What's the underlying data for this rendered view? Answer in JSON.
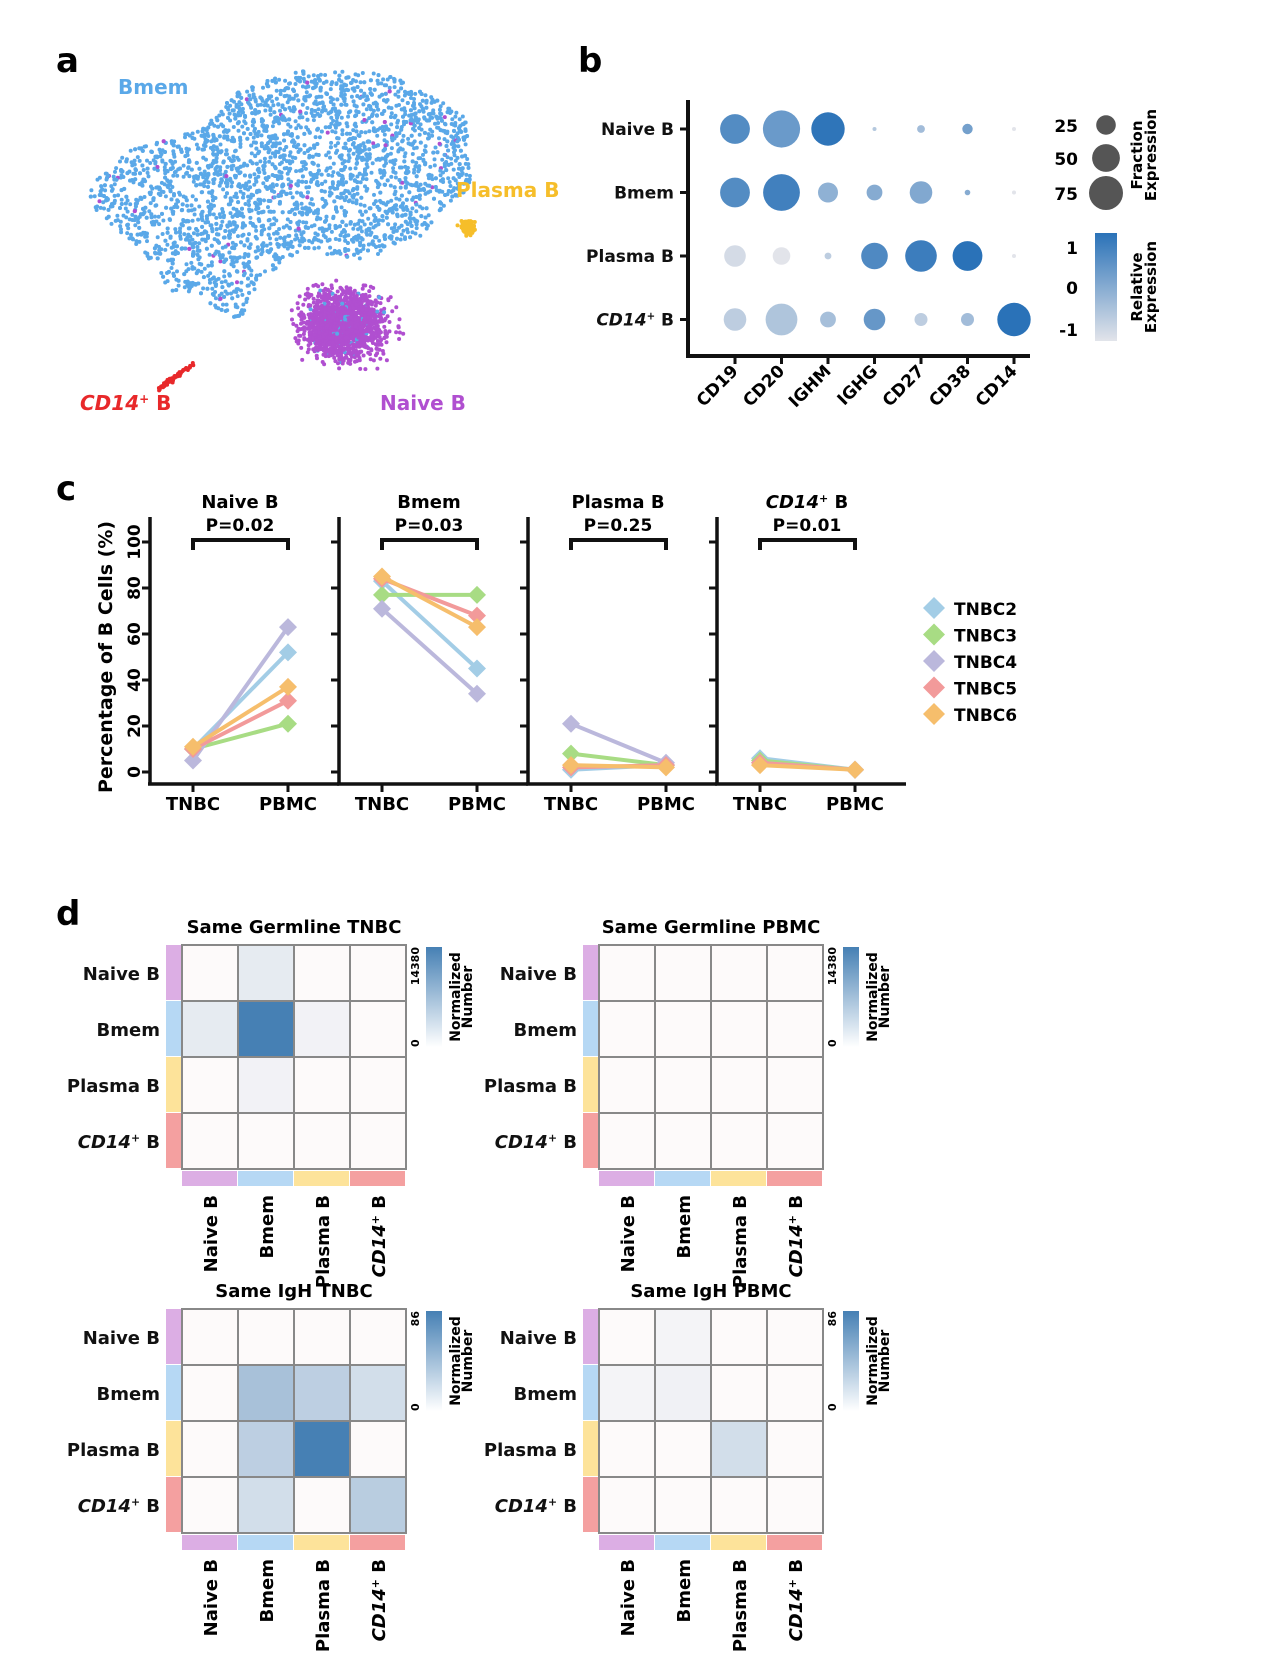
{
  "panel_labels": {
    "a": "a",
    "b": "b",
    "c": "c",
    "d": "d"
  },
  "colors": {
    "naive": "#b04fd0",
    "bmem": "#5aa8e8",
    "plasma": "#f6be2a",
    "cd14": "#e8282a",
    "dot_high": "#2a72b8",
    "dot_low": "#e2e4ea",
    "heat_high": "#4680b4",
    "heat_low": "#fdfafa",
    "ann_naive": "#dcaee4",
    "ann_bmem": "#b6d8f4",
    "ann_plasma": "#fde39a",
    "ann_cd14": "#f4a0a0"
  },
  "chart_data": [
    {
      "id": "a",
      "type": "scatter",
      "title": "",
      "cluster_labels": [
        {
          "key": "bmem",
          "text": "Bmem",
          "italic_prefix": "",
          "suffix": ""
        },
        {
          "key": "plasma",
          "text": "Plasma B",
          "italic_prefix": "",
          "suffix": ""
        },
        {
          "key": "naive",
          "text": "Naive B",
          "italic_prefix": "",
          "suffix": ""
        },
        {
          "key": "cd14",
          "text": " B",
          "italic_prefix": "CD14",
          "suffix": "+"
        }
      ],
      "clusters": [
        {
          "name": "Bmem",
          "key": "bmem",
          "approx_points": 3800
        },
        {
          "name": "Naive B",
          "key": "naive",
          "approx_points": 1800
        },
        {
          "name": "Plasma B",
          "key": "plasma",
          "approx_points": 90
        },
        {
          "name": "CD14+ B",
          "key": "cd14",
          "approx_points": 60
        }
      ]
    },
    {
      "id": "b",
      "type": "scatter",
      "subtype": "dotplot",
      "rows": [
        {
          "label": "Naive B",
          "italic_prefix": "",
          "suffix": ""
        },
        {
          "label": "Bmem",
          "italic_prefix": "",
          "suffix": ""
        },
        {
          "label": "Plasma B",
          "italic_prefix": "",
          "suffix": ""
        },
        {
          "label": " B",
          "italic_prefix": "CD14",
          "suffix": "+"
        }
      ],
      "genes": [
        "CD19",
        "CD20",
        "IGHM",
        "IGHG",
        "CD27",
        "CD38",
        "CD14"
      ],
      "fraction": [
        [
          58,
          90,
          72,
          1,
          4,
          7,
          1
        ],
        [
          58,
          88,
          26,
          16,
          33,
          2,
          1
        ],
        [
          30,
          20,
          3,
          46,
          65,
          58,
          1
        ],
        [
          33,
          66,
          16,
          30,
          11,
          11,
          72
        ]
      ],
      "expression": [
        [
          0.55,
          0.3,
          0.95,
          -0.5,
          -0.3,
          0.2,
          -1
        ],
        [
          0.55,
          0.75,
          -0.1,
          0.0,
          0.05,
          0.0,
          -1
        ],
        [
          -0.85,
          -1.0,
          -0.6,
          0.6,
          0.8,
          1.0,
          -1
        ],
        [
          -0.6,
          -0.45,
          -0.35,
          0.35,
          -0.6,
          -0.3,
          1.0
        ]
      ],
      "size_legend": {
        "title_line1": "Fraction",
        "title_line2": "Expression",
        "values": [
          25,
          50,
          75
        ]
      },
      "color_legend": {
        "title_line1": "Relative",
        "title_line2": "Expression",
        "ticks": [
          1,
          0,
          -1
        ],
        "range": [
          -1,
          1
        ]
      }
    },
    {
      "id": "c",
      "type": "line",
      "ylabel": "Percentage of B Cells (%)",
      "ylim": [
        0,
        100
      ],
      "yticks": [
        0,
        20,
        40,
        60,
        80,
        100
      ],
      "categories": [
        "TNBC",
        "PBMC"
      ],
      "legend_position": "right",
      "series_meta": [
        {
          "name": "TNBC2",
          "color": "#a3cde6"
        },
        {
          "name": "TNBC3",
          "color": "#a8dc84"
        },
        {
          "name": "TNBC4",
          "color": "#bbb8dc"
        },
        {
          "name": "TNBC5",
          "color": "#f29a9a"
        },
        {
          "name": "TNBC6",
          "color": "#f6be6c"
        }
      ],
      "facets": [
        {
          "title": "Naive B",
          "italic_prefix": "",
          "suffix": "",
          "pvalue": "P=0.02",
          "values": [
            [
              10,
              52
            ],
            [
              10,
              21
            ],
            [
              5,
              63
            ],
            [
              10,
              31
            ],
            [
              11,
              37
            ]
          ]
        },
        {
          "title": "Bmem",
          "italic_prefix": "",
          "suffix": "",
          "pvalue": "P=0.03",
          "values": [
            [
              83,
              45
            ],
            [
              77,
              77
            ],
            [
              71,
              34
            ],
            [
              84,
              68
            ],
            [
              85,
              63
            ]
          ]
        },
        {
          "title": "Plasma B",
          "italic_prefix": "",
          "suffix": "",
          "pvalue": "P=0.25",
          "values": [
            [
              1,
              3
            ],
            [
              8,
              3
            ],
            [
              21,
              4
            ],
            [
              2,
              3
            ],
            [
              3,
              2
            ]
          ]
        },
        {
          "title": " B",
          "italic_prefix": "CD14",
          "suffix": "+",
          "pvalue": "P=0.01",
          "values": [
            [
              6,
              1
            ],
            [
              5,
              1
            ],
            [
              4,
              1
            ],
            [
              4,
              1
            ],
            [
              3,
              1
            ]
          ]
        }
      ]
    },
    {
      "id": "d",
      "type": "heatmap",
      "row_labels": [
        {
          "label": "Naive B",
          "italic_prefix": "",
          "suffix": "",
          "key": "ann_naive"
        },
        {
          "label": "Bmem",
          "italic_prefix": "",
          "suffix": "",
          "key": "ann_bmem"
        },
        {
          "label": "Plasma B",
          "italic_prefix": "",
          "suffix": "",
          "key": "ann_plasma"
        },
        {
          "label": " B",
          "italic_prefix": "CD14",
          "suffix": "+",
          "key": "ann_cd14"
        }
      ],
      "legend_title_line1": "Normalized",
      "legend_title_line2": "Number",
      "panels": [
        {
          "title": "Same Germline TNBC",
          "max": 14380,
          "min": 0,
          "matrix": [
            [
              0,
              1800,
              0,
              0
            ],
            [
              1800,
              14380,
              900,
              0
            ],
            [
              0,
              900,
              0,
              0
            ],
            [
              0,
              0,
              0,
              0
            ]
          ]
        },
        {
          "title": "Same Germline PBMC",
          "max": 14380,
          "min": 0,
          "matrix": [
            [
              0,
              0,
              0,
              0
            ],
            [
              0,
              0,
              0,
              0
            ],
            [
              0,
              0,
              0,
              0
            ],
            [
              0,
              0,
              0,
              0
            ]
          ]
        },
        {
          "title": "Same IgH TNBC",
          "max": 86,
          "min": 0,
          "matrix": [
            [
              0,
              0,
              0,
              0
            ],
            [
              0,
              40,
              30,
              20
            ],
            [
              0,
              30,
              86,
              0
            ],
            [
              0,
              20,
              0,
              32
            ]
          ]
        },
        {
          "title": "Same IgH PBMC",
          "max": 86,
          "min": 0,
          "matrix": [
            [
              0,
              4,
              0,
              0
            ],
            [
              4,
              6,
              0,
              0
            ],
            [
              0,
              0,
              20,
              0
            ],
            [
              0,
              0,
              0,
              0
            ]
          ]
        }
      ]
    }
  ]
}
